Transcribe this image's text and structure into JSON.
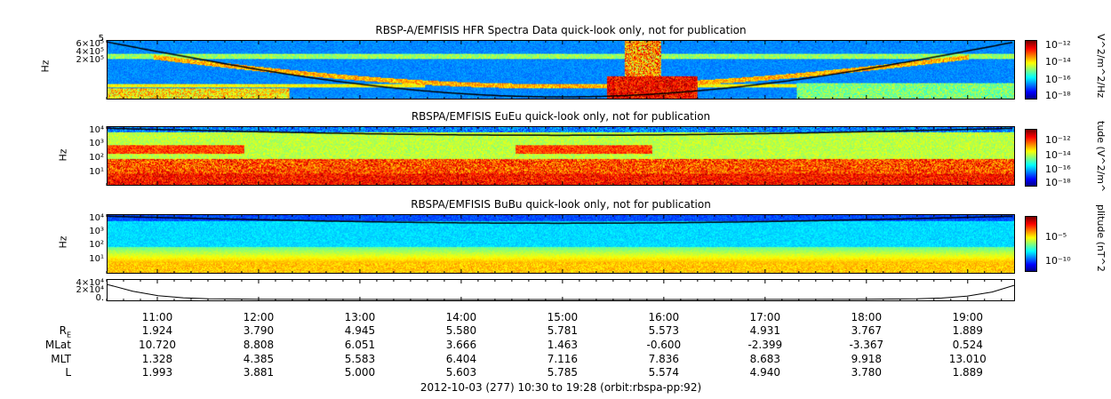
{
  "chart_data": [
    {
      "type": "heatmap",
      "title": "RBSP-A/EMFISIS  HFR Spectra Data quick-look only, not for publication",
      "ylabel": "Hz",
      "yticks": [
        "5",
        "6×10⁵",
        "4×10⁵",
        "2×10⁵"
      ],
      "colorbar_label": "V^2/m^2/Hz",
      "colorbar_ticks": [
        "10⁻¹²",
        "10⁻¹⁴",
        "10⁻¹⁶",
        "10⁻¹⁸"
      ],
      "colorbar_range": [
        -18.5,
        -11.5
      ]
    },
    {
      "type": "heatmap",
      "title": "RBSPA/EMFISIS  EuEu quick-look only, not for publication",
      "ylabel": "Hz",
      "yticks": [
        "10⁴",
        "10³",
        "10²",
        "10¹"
      ],
      "colorbar_label": "tude (V^2/m^",
      "colorbar_ticks": [
        "10⁻¹²",
        "10⁻¹⁴",
        "10⁻¹⁶",
        "10⁻¹⁸"
      ],
      "colorbar_range": [
        -18.5,
        -11.5
      ]
    },
    {
      "type": "heatmap",
      "title": "RBSPA/EMFISIS  BuBu quick-look only, not for publication",
      "ylabel": "Hz",
      "yticks": [
        "10⁴",
        "10³",
        "10²",
        "10¹"
      ],
      "colorbar_label": "plitude (nT^2",
      "colorbar_ticks": [
        "10⁻⁵",
        "10⁻¹⁰"
      ],
      "colorbar_range": [
        -12.5,
        -1.5
      ]
    },
    {
      "type": "line",
      "title": "",
      "yticks": [
        "4×10⁴",
        "2×10⁴",
        "0."
      ],
      "ylim": [
        0,
        45000
      ],
      "x_hours": [
        10.5,
        10.75,
        11.0,
        11.25,
        11.5,
        12.0,
        13.0,
        14.0,
        15.0,
        16.0,
        17.0,
        18.0,
        18.5,
        18.75,
        19.0,
        19.25,
        19.467
      ],
      "values": [
        36000,
        20000,
        9000,
        4000,
        1800,
        500,
        150,
        80,
        60,
        70,
        150,
        500,
        1500,
        3500,
        8000,
        18000,
        34000
      ]
    }
  ],
  "x_axis": {
    "range_hours": [
      10.5,
      19.467
    ],
    "ticks": [
      {
        "hour": 11,
        "label": "11:00"
      },
      {
        "hour": 12,
        "label": "12:00"
      },
      {
        "hour": 13,
        "label": "13:00"
      },
      {
        "hour": 14,
        "label": "14:00"
      },
      {
        "hour": 15,
        "label": "15:00"
      },
      {
        "hour": 16,
        "label": "16:00"
      },
      {
        "hour": 17,
        "label": "17:00"
      },
      {
        "hour": 18,
        "label": "18:00"
      },
      {
        "hour": 19,
        "label": "19:00"
      }
    ]
  },
  "ephemeris": [
    {
      "label": "R",
      "sub": "E",
      "values": [
        "1.924",
        "3.790",
        "4.945",
        "5.580",
        "5.781",
        "5.573",
        "4.931",
        "3.767",
        "1.889"
      ]
    },
    {
      "label": "MLat",
      "sub": "",
      "values": [
        "10.720",
        "8.808",
        "6.051",
        "3.666",
        "1.463",
        "-0.600",
        "-2.399",
        "-3.367",
        "0.524"
      ]
    },
    {
      "label": "MLT",
      "sub": "",
      "values": [
        "1.328",
        "4.385",
        "5.583",
        "6.404",
        "7.116",
        "7.836",
        "8.683",
        "9.918",
        "13.010"
      ]
    },
    {
      "label": "L",
      "sub": "",
      "values": [
        "1.993",
        "3.881",
        "5.000",
        "5.603",
        "5.785",
        "5.574",
        "4.940",
        "3.780",
        "1.889"
      ]
    }
  ],
  "footer": "2012-10-03 (277) 10:30 to 19:28 (orbit:rbspa-pp:92)"
}
